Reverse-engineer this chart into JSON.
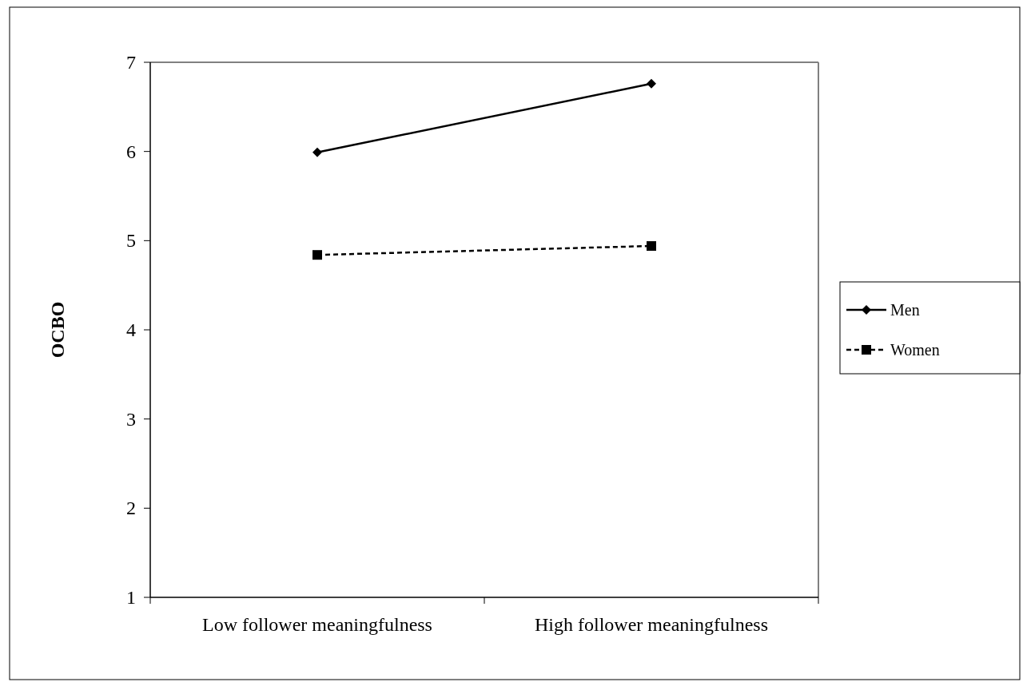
{
  "chart_data": {
    "type": "line",
    "ylabel": "OCBO",
    "categories": [
      "Low follower meaningfulness",
      "High follower meaningfulness"
    ],
    "series": [
      {
        "name": "Men",
        "color": "#000000",
        "values": [
          5.99,
          6.76
        ],
        "marker": "diamond",
        "line_style": "solid"
      },
      {
        "name": "Women",
        "color": "#000000",
        "values": [
          4.84,
          4.94
        ],
        "marker": "square",
        "line_style": "dashed"
      }
    ],
    "ylim": [
      1,
      7
    ],
    "yticks": [
      1,
      2,
      3,
      4,
      5,
      6,
      7
    ],
    "grid": false,
    "legend": "right"
  }
}
